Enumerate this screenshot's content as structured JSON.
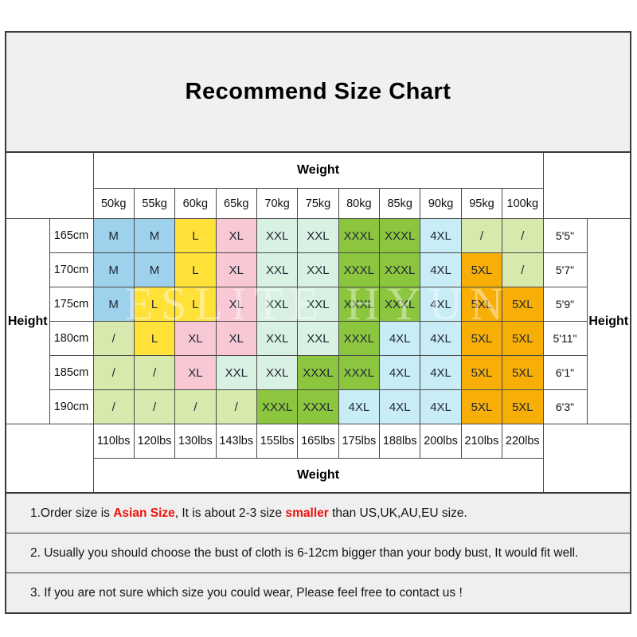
{
  "title": "Recommend Size Chart",
  "watermark": "ESLITE HYUN",
  "colors": {
    "M": "#9ED1EC",
    "L": "#FFE138",
    "XL": "#F8C8D4",
    "XXL": "#D9F1E2",
    "XXXL": "#8CC63F",
    "4XL": "#C9EDF7",
    "5XL": "#F7AF08",
    "na": "#D8E9AE",
    "accent_red": "#ED120B",
    "border": "#4A4A4A",
    "panel_bg": "#F0F0F0"
  },
  "chart_data": {
    "type": "table",
    "title": "Recommend Size Chart",
    "column_group_label": "Weight",
    "column_group_label_bottom": "Weight",
    "row_group_label_left": "Height",
    "row_group_label_right": "Height",
    "columns_kg": [
      "50kg",
      "55kg",
      "60kg",
      "65kg",
      "70kg",
      "75kg",
      "80kg",
      "85kg",
      "90kg",
      "95kg",
      "100kg"
    ],
    "columns_lbs": [
      "110lbs",
      "120lbs",
      "130lbs",
      "143lbs",
      "155lbs",
      "165lbs",
      "175lbs",
      "188lbs",
      "200lbs",
      "210lbs",
      "220lbs"
    ],
    "rows": [
      {
        "height_cm": "165cm",
        "height_ft": "5'5\"",
        "sizes": [
          "M",
          "M",
          "L",
          "XL",
          "XXL",
          "XXL",
          "XXXL",
          "XXXL",
          "4XL",
          "/",
          "/"
        ]
      },
      {
        "height_cm": "170cm",
        "height_ft": "5'7\"",
        "sizes": [
          "M",
          "M",
          "L",
          "XL",
          "XXL",
          "XXL",
          "XXXL",
          "XXXL",
          "4XL",
          "5XL",
          "/"
        ]
      },
      {
        "height_cm": "175cm",
        "height_ft": "5'9\"",
        "sizes": [
          "M",
          "L",
          "L",
          "XL",
          "XXL",
          "XXL",
          "XXXL",
          "XXXL",
          "4XL",
          "5XL",
          "5XL"
        ]
      },
      {
        "height_cm": "180cm",
        "height_ft": "5'11\"",
        "sizes": [
          "/",
          "L",
          "XL",
          "XL",
          "XXL",
          "XXL",
          "XXXL",
          "4XL",
          "4XL",
          "5XL",
          "5XL"
        ]
      },
      {
        "height_cm": "185cm",
        "height_ft": "6'1\"",
        "sizes": [
          "/",
          "/",
          "XL",
          "XXL",
          "XXL",
          "XXXL",
          "XXXL",
          "4XL",
          "4XL",
          "5XL",
          "5XL"
        ]
      },
      {
        "height_cm": "190cm",
        "height_ft": "6'3\"",
        "sizes": [
          "/",
          "/",
          "/",
          "/",
          "XXXL",
          "XXXL",
          "4XL",
          "4XL",
          "4XL",
          "5XL",
          "5XL"
        ]
      }
    ]
  },
  "notes": [
    {
      "segments": [
        {
          "text": "1.Order size is ",
          "red": false
        },
        {
          "text": "Asian Size",
          "red": true
        },
        {
          "text": ", It is about 2-3 size ",
          "red": false
        },
        {
          "text": "smaller",
          "red": true
        },
        {
          "text": " than US,UK,AU,EU size.",
          "red": false
        }
      ]
    },
    {
      "segments": [
        {
          "text": "2. Usually you should choose the bust of cloth is 6-12cm bigger than your body bust, It would fit well.",
          "red": false
        }
      ]
    },
    {
      "segments": [
        {
          "text": "3. If you are not sure which size you could wear, Please feel free to contact us !",
          "red": false
        }
      ]
    }
  ]
}
